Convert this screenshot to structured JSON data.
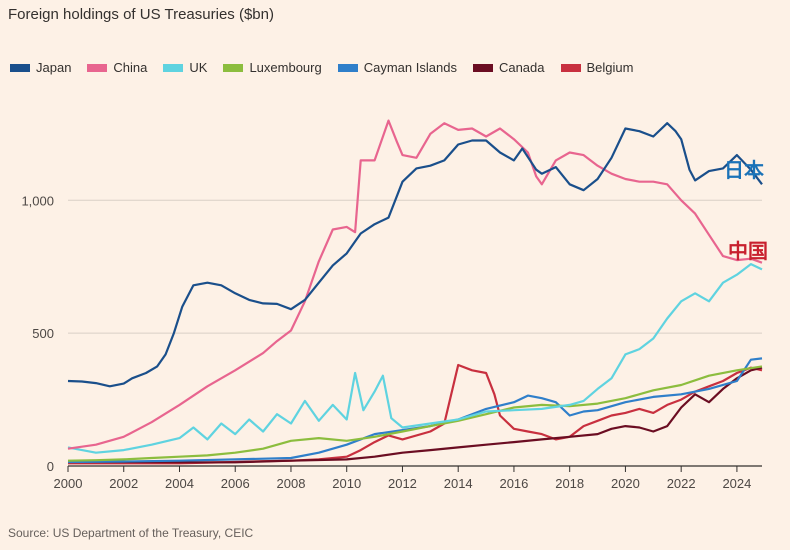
{
  "header": {
    "title": "Foreign holdings of US Treasuries ($bn)"
  },
  "footer": {
    "source": "Source: US Department of the Treasury, CEIC"
  },
  "chart_data": {
    "type": "line",
    "title": "Foreign holdings of US Treasuries ($bn)",
    "xlabel": "",
    "ylabel": "",
    "xlim": [
      2000,
      2024.9
    ],
    "ylim": [
      0,
      1400
    ],
    "x_ticks": [
      2000,
      2002,
      2004,
      2006,
      2008,
      2010,
      2012,
      2014,
      2016,
      2018,
      2020,
      2022,
      2024
    ],
    "x_tick_labels": [
      "2000",
      "2002",
      "2004",
      "2006",
      "2008",
      "2010",
      "2012",
      "2014",
      "2016",
      "2018",
      "2020",
      "2022",
      "2024"
    ],
    "y_ticks": [
      0,
      500,
      1000
    ],
    "y_tick_labels": [
      "0",
      "500",
      "1,000"
    ],
    "grid": true,
    "legend_position": "top-left",
    "annotations": [
      {
        "text": "日本",
        "series": "Japan",
        "color": "#1b73b8"
      },
      {
        "text": "中国",
        "series": "China",
        "color": "#c8202e"
      }
    ],
    "series": [
      {
        "name": "Japan",
        "color": "#1a4f8b",
        "points": [
          [
            2000,
            320
          ],
          [
            2000.5,
            318
          ],
          [
            2001,
            312
          ],
          [
            2001.5,
            300
          ],
          [
            2002,
            310
          ],
          [
            2002.3,
            330
          ],
          [
            2002.8,
            350
          ],
          [
            2003.2,
            375
          ],
          [
            2003.5,
            420
          ],
          [
            2003.8,
            500
          ],
          [
            2004.1,
            600
          ],
          [
            2004.5,
            680
          ],
          [
            2005,
            690
          ],
          [
            2005.5,
            680
          ],
          [
            2006,
            650
          ],
          [
            2006.5,
            625
          ],
          [
            2007,
            612
          ],
          [
            2007.5,
            610
          ],
          [
            2008,
            590
          ],
          [
            2008.5,
            625
          ],
          [
            2009,
            690
          ],
          [
            2009.5,
            755
          ],
          [
            2010,
            800
          ],
          [
            2010.5,
            875
          ],
          [
            2011,
            910
          ],
          [
            2011.5,
            935
          ],
          [
            2012,
            1070
          ],
          [
            2012.5,
            1120
          ],
          [
            2013,
            1130
          ],
          [
            2013.5,
            1150
          ],
          [
            2014,
            1210
          ],
          [
            2014.5,
            1225
          ],
          [
            2015,
            1225
          ],
          [
            2015.5,
            1180
          ],
          [
            2016,
            1150
          ],
          [
            2016.3,
            1195
          ],
          [
            2016.8,
            1115
          ],
          [
            2017,
            1100
          ],
          [
            2017.5,
            1125
          ],
          [
            2018,
            1060
          ],
          [
            2018.5,
            1038
          ],
          [
            2019,
            1080
          ],
          [
            2019.5,
            1160
          ],
          [
            2020,
            1270
          ],
          [
            2020.5,
            1260
          ],
          [
            2021,
            1240
          ],
          [
            2021.5,
            1290
          ],
          [
            2021.8,
            1260
          ],
          [
            2022,
            1230
          ],
          [
            2022.3,
            1115
          ],
          [
            2022.5,
            1075
          ],
          [
            2023,
            1110
          ],
          [
            2023.5,
            1120
          ],
          [
            2024,
            1170
          ],
          [
            2024.5,
            1115
          ],
          [
            2024.9,
            1060
          ]
        ]
      },
      {
        "name": "China",
        "color": "#e8658f",
        "points": [
          [
            2000,
            65
          ],
          [
            2001,
            80
          ],
          [
            2002,
            110
          ],
          [
            2003,
            165
          ],
          [
            2004,
            230
          ],
          [
            2005,
            300
          ],
          [
            2006,
            360
          ],
          [
            2007,
            425
          ],
          [
            2007.5,
            470
          ],
          [
            2008,
            510
          ],
          [
            2008.5,
            620
          ],
          [
            2009,
            770
          ],
          [
            2009.5,
            890
          ],
          [
            2010,
            900
          ],
          [
            2010.3,
            880
          ],
          [
            2010.5,
            1150
          ],
          [
            2011,
            1150
          ],
          [
            2011.5,
            1300
          ],
          [
            2011.8,
            1220
          ],
          [
            2012,
            1170
          ],
          [
            2012.5,
            1160
          ],
          [
            2013,
            1250
          ],
          [
            2013.5,
            1290
          ],
          [
            2014,
            1265
          ],
          [
            2014.5,
            1270
          ],
          [
            2015,
            1240
          ],
          [
            2015.5,
            1270
          ],
          [
            2016,
            1230
          ],
          [
            2016.5,
            1180
          ],
          [
            2016.8,
            1090
          ],
          [
            2017,
            1060
          ],
          [
            2017.5,
            1150
          ],
          [
            2018,
            1180
          ],
          [
            2018.5,
            1170
          ],
          [
            2019,
            1130
          ],
          [
            2019.5,
            1100
          ],
          [
            2020,
            1080
          ],
          [
            2020.5,
            1070
          ],
          [
            2021,
            1070
          ],
          [
            2021.5,
            1060
          ],
          [
            2022,
            1000
          ],
          [
            2022.5,
            950
          ],
          [
            2023,
            870
          ],
          [
            2023.5,
            790
          ],
          [
            2024,
            775
          ],
          [
            2024.5,
            780
          ],
          [
            2024.9,
            765
          ]
        ]
      },
      {
        "name": "UK",
        "color": "#5fd3e0",
        "points": [
          [
            2000,
            70
          ],
          [
            2001,
            50
          ],
          [
            2002,
            60
          ],
          [
            2003,
            80
          ],
          [
            2004,
            105
          ],
          [
            2004.5,
            145
          ],
          [
            2005,
            100
          ],
          [
            2005.5,
            160
          ],
          [
            2006,
            120
          ],
          [
            2006.5,
            175
          ],
          [
            2007,
            130
          ],
          [
            2007.5,
            195
          ],
          [
            2008,
            160
          ],
          [
            2008.5,
            245
          ],
          [
            2009,
            170
          ],
          [
            2009.5,
            230
          ],
          [
            2010,
            175
          ],
          [
            2010.3,
            350
          ],
          [
            2010.6,
            210
          ],
          [
            2011,
            280
          ],
          [
            2011.3,
            340
          ],
          [
            2011.6,
            180
          ],
          [
            2012,
            145
          ],
          [
            2013,
            160
          ],
          [
            2014,
            175
          ],
          [
            2015,
            205
          ],
          [
            2016,
            210
          ],
          [
            2017,
            215
          ],
          [
            2018,
            230
          ],
          [
            2018.5,
            245
          ],
          [
            2019,
            290
          ],
          [
            2019.5,
            330
          ],
          [
            2020,
            420
          ],
          [
            2020.5,
            440
          ],
          [
            2021,
            480
          ],
          [
            2021.5,
            555
          ],
          [
            2022,
            620
          ],
          [
            2022.5,
            650
          ],
          [
            2023,
            620
          ],
          [
            2023.5,
            690
          ],
          [
            2024,
            720
          ],
          [
            2024.5,
            760
          ],
          [
            2024.9,
            740
          ]
        ]
      },
      {
        "name": "Luxembourg",
        "color": "#8cbd3e",
        "points": [
          [
            2000,
            20
          ],
          [
            2001,
            22
          ],
          [
            2002,
            25
          ],
          [
            2003,
            30
          ],
          [
            2004,
            35
          ],
          [
            2005,
            40
          ],
          [
            2006,
            50
          ],
          [
            2007,
            65
          ],
          [
            2008,
            95
          ],
          [
            2009,
            105
          ],
          [
            2010,
            95
          ],
          [
            2011,
            110
          ],
          [
            2012,
            130
          ],
          [
            2013,
            150
          ],
          [
            2014,
            170
          ],
          [
            2015,
            195
          ],
          [
            2016,
            220
          ],
          [
            2017,
            230
          ],
          [
            2018,
            225
          ],
          [
            2019,
            235
          ],
          [
            2020,
            255
          ],
          [
            2021,
            285
          ],
          [
            2022,
            305
          ],
          [
            2023,
            340
          ],
          [
            2024,
            360
          ],
          [
            2024.9,
            375
          ]
        ]
      },
      {
        "name": "Cayman Islands",
        "color": "#2f7fca",
        "points": [
          [
            2000,
            15
          ],
          [
            2002,
            17
          ],
          [
            2004,
            20
          ],
          [
            2006,
            25
          ],
          [
            2008,
            30
          ],
          [
            2009,
            50
          ],
          [
            2010,
            80
          ],
          [
            2011,
            120
          ],
          [
            2012,
            135
          ],
          [
            2013,
            150
          ],
          [
            2014,
            175
          ],
          [
            2015,
            215
          ],
          [
            2016,
            240
          ],
          [
            2016.5,
            265
          ],
          [
            2017,
            255
          ],
          [
            2017.5,
            240
          ],
          [
            2018,
            190
          ],
          [
            2018.5,
            205
          ],
          [
            2019,
            210
          ],
          [
            2019.5,
            225
          ],
          [
            2020,
            240
          ],
          [
            2021,
            260
          ],
          [
            2022,
            270
          ],
          [
            2023,
            290
          ],
          [
            2024,
            320
          ],
          [
            2024.5,
            400
          ],
          [
            2024.9,
            405
          ]
        ]
      },
      {
        "name": "Canada",
        "color": "#6b0d22",
        "points": [
          [
            2000,
            15
          ],
          [
            2002,
            15
          ],
          [
            2004,
            14
          ],
          [
            2006,
            14
          ],
          [
            2008,
            20
          ],
          [
            2010,
            25
          ],
          [
            2011,
            35
          ],
          [
            2012,
            50
          ],
          [
            2013,
            60
          ],
          [
            2014,
            70
          ],
          [
            2015,
            80
          ],
          [
            2016,
            90
          ],
          [
            2017,
            100
          ],
          [
            2018,
            110
          ],
          [
            2019,
            120
          ],
          [
            2019.5,
            140
          ],
          [
            2020,
            150
          ],
          [
            2020.5,
            145
          ],
          [
            2021,
            130
          ],
          [
            2021.5,
            150
          ],
          [
            2022,
            220
          ],
          [
            2022.5,
            270
          ],
          [
            2023,
            240
          ],
          [
            2023.5,
            290
          ],
          [
            2024,
            330
          ],
          [
            2024.5,
            360
          ],
          [
            2024.9,
            370
          ]
        ]
      },
      {
        "name": "Belgium",
        "color": "#c8303f",
        "points": [
          [
            2000,
            10
          ],
          [
            2004,
            10
          ],
          [
            2006,
            15
          ],
          [
            2007,
            18
          ],
          [
            2008,
            20
          ],
          [
            2009,
            25
          ],
          [
            2010,
            35
          ],
          [
            2010.5,
            60
          ],
          [
            2011,
            90
          ],
          [
            2011.5,
            115
          ],
          [
            2012,
            100
          ],
          [
            2013,
            130
          ],
          [
            2013.5,
            160
          ],
          [
            2014,
            380
          ],
          [
            2014.5,
            360
          ],
          [
            2015,
            350
          ],
          [
            2015.3,
            270
          ],
          [
            2015.5,
            190
          ],
          [
            2016,
            140
          ],
          [
            2016.5,
            130
          ],
          [
            2017,
            120
          ],
          [
            2017.5,
            100
          ],
          [
            2018,
            110
          ],
          [
            2018.5,
            150
          ],
          [
            2019,
            170
          ],
          [
            2019.5,
            190
          ],
          [
            2020,
            200
          ],
          [
            2020.5,
            215
          ],
          [
            2021,
            200
          ],
          [
            2021.5,
            230
          ],
          [
            2022,
            250
          ],
          [
            2022.5,
            280
          ],
          [
            2023,
            300
          ],
          [
            2023.5,
            320
          ],
          [
            2024,
            350
          ],
          [
            2024.5,
            370
          ],
          [
            2024.9,
            360
          ]
        ]
      }
    ]
  }
}
